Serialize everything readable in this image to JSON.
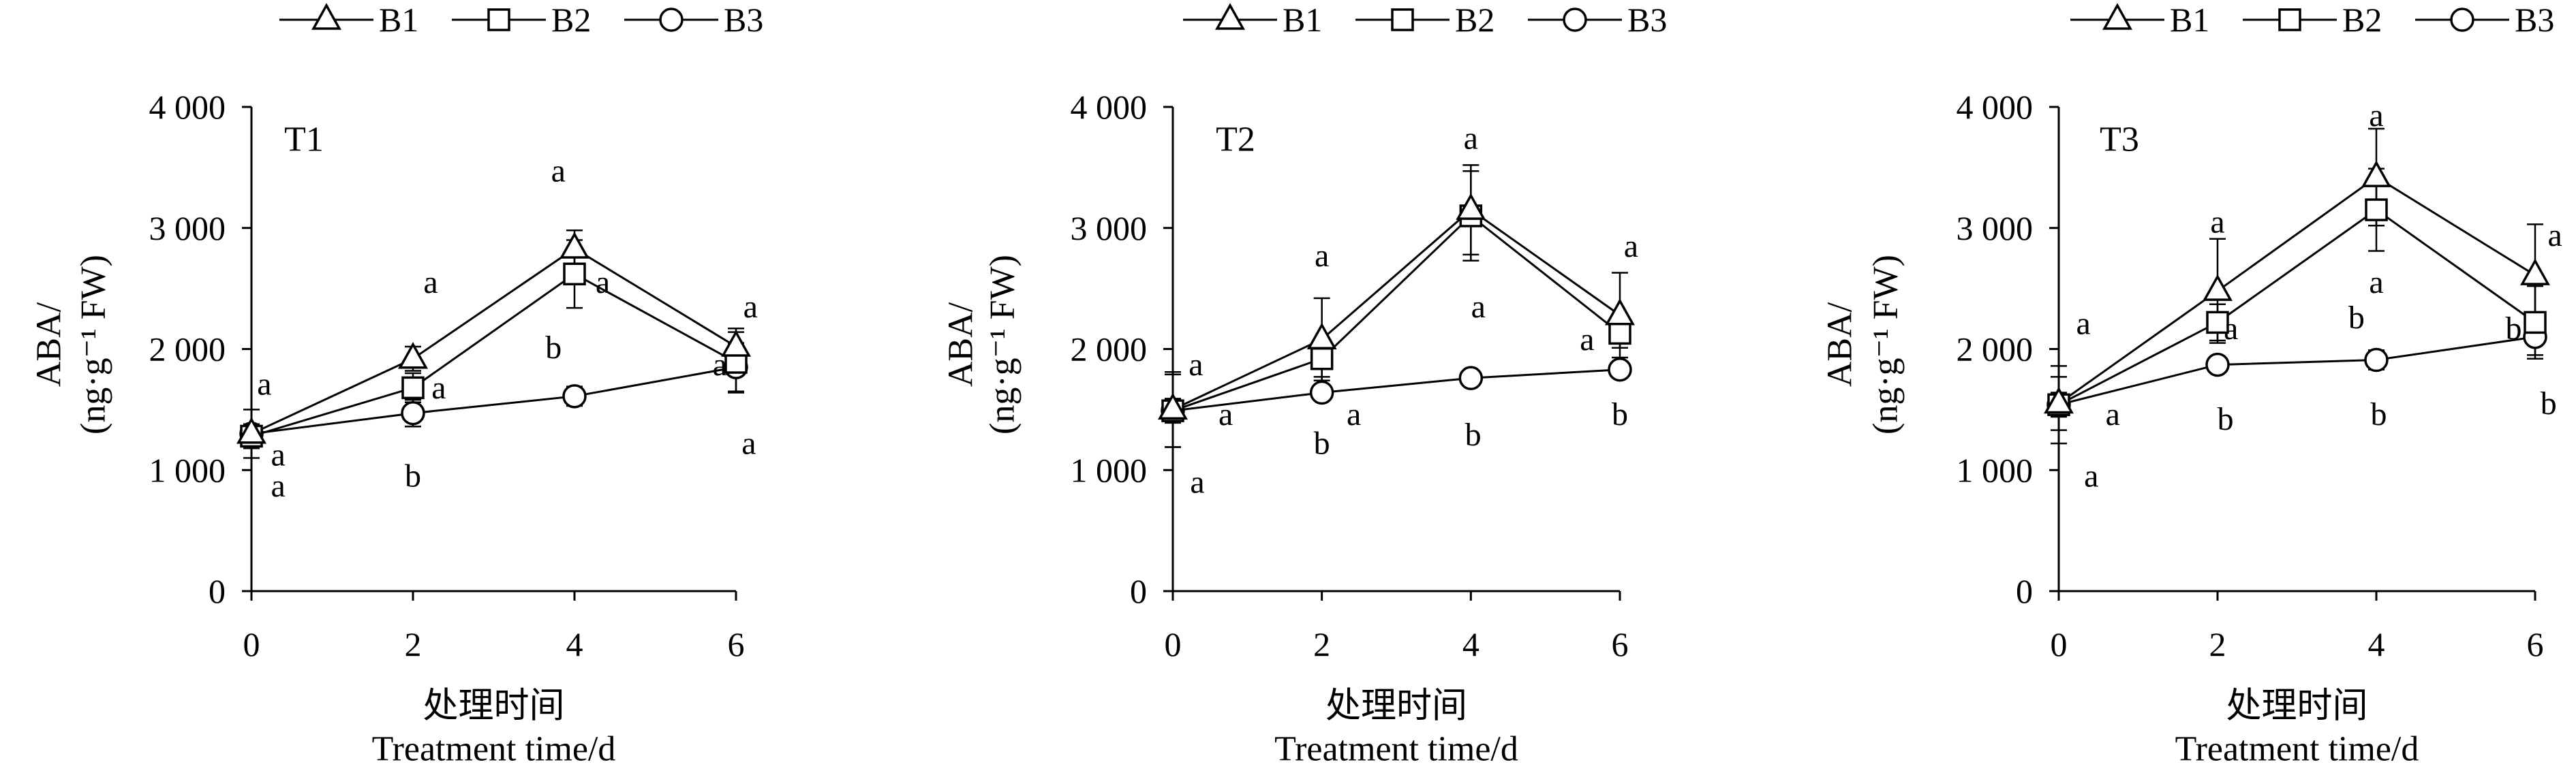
{
  "chart_data": [
    {
      "type": "line",
      "panel_label": "T1",
      "x": [
        0,
        2,
        4,
        6
      ],
      "xticks": [
        "0",
        "2",
        "4",
        "6"
      ],
      "xlim": [
        0,
        6
      ],
      "ytick_values": [
        0,
        1000,
        2000,
        3000,
        4000
      ],
      "yticks": [
        "0",
        "1 000",
        "2 000",
        "3 000",
        "4 000"
      ],
      "ylim": [
        0,
        4000
      ],
      "xlabel": [
        "处理时间",
        "Treatment time/d"
      ],
      "ylabel": [
        "ABA/",
        "(ng·g⁻¹ FW)"
      ],
      "legend": "top",
      "grid": false,
      "series": [
        {
          "name": "B1",
          "marker": "triangle",
          "values": [
            1300,
            1920,
            2830,
            2020
          ],
          "errors": [
            200,
            100,
            150,
            150
          ]
        },
        {
          "name": "B2",
          "marker": "square",
          "values": [
            1280,
            1680,
            2620,
            1890
          ],
          "errors": [
            100,
            120,
            280,
            250
          ]
        },
        {
          "name": "B3",
          "marker": "circle",
          "values": [
            1300,
            1470,
            1610,
            1850
          ],
          "errors": [
            60,
            110,
            80,
            200
          ]
        }
      ],
      "annotations": [
        {
          "x": 3.8,
          "y": 3470,
          "text": "a"
        },
        {
          "x": 2.22,
          "y": 2550,
          "text": "a"
        },
        {
          "x": 0.16,
          "y": 1710,
          "text": "a"
        },
        {
          "x": 2.32,
          "y": 1680,
          "text": "a"
        },
        {
          "x": 0.33,
          "y": 1125,
          "text": "a"
        },
        {
          "x": 0.33,
          "y": 870,
          "text": "a"
        },
        {
          "x": 2.0,
          "y": 950,
          "text": "b"
        },
        {
          "x": 3.74,
          "y": 2010,
          "text": "b"
        },
        {
          "x": 4.35,
          "y": 2550,
          "text": "a"
        },
        {
          "x": 6.18,
          "y": 2350,
          "text": "a"
        },
        {
          "x": 5.8,
          "y": 1870,
          "text": "a"
        },
        {
          "x": 6.16,
          "y": 1220,
          "text": "a"
        }
      ]
    },
    {
      "type": "line",
      "panel_label": "T2",
      "x": [
        0,
        2,
        4,
        6
      ],
      "xticks": [
        "0",
        "2",
        "4",
        "6"
      ],
      "xlim": [
        0,
        6
      ],
      "ytick_values": [
        0,
        1000,
        2000,
        3000,
        4000
      ],
      "yticks": [
        "0",
        "1 000",
        "2 000",
        "3 000",
        "4 000"
      ],
      "ylim": [
        0,
        4000
      ],
      "xlabel": [
        "处理时间",
        "Treatment time/d"
      ],
      "ylabel": [
        "ABA/",
        "(ng·g⁻¹ FW)"
      ],
      "legend": "top",
      "grid": false,
      "series": [
        {
          "name": "B1",
          "marker": "triangle",
          "values": [
            1500,
            2080,
            3150,
            2280
          ],
          "errors": [
            310,
            340,
            370,
            350
          ]
        },
        {
          "name": "B2",
          "marker": "square",
          "values": [
            1490,
            1920,
            3100,
            2130
          ],
          "errors": [
            100,
            150,
            370,
            120
          ]
        },
        {
          "name": "B3",
          "marker": "circle",
          "values": [
            1490,
            1640,
            1760,
            1830
          ],
          "errors": [
            300,
            50,
            40,
            40
          ]
        }
      ],
      "annotations": [
        {
          "x": 4.0,
          "y": 3740,
          "text": "a"
        },
        {
          "x": 2.0,
          "y": 2770,
          "text": "a"
        },
        {
          "x": 0.31,
          "y": 1870,
          "text": "a"
        },
        {
          "x": 6.15,
          "y": 2850,
          "text": "a"
        },
        {
          "x": 0.71,
          "y": 1460,
          "text": "a"
        },
        {
          "x": 2.43,
          "y": 1460,
          "text": "a"
        },
        {
          "x": 4.1,
          "y": 2350,
          "text": "a"
        },
        {
          "x": 5.56,
          "y": 2080,
          "text": "a"
        },
        {
          "x": 2.0,
          "y": 1220,
          "text": "b"
        },
        {
          "x": 4.03,
          "y": 1290,
          "text": "b"
        },
        {
          "x": 6.0,
          "y": 1460,
          "text": "b"
        },
        {
          "x": 0.33,
          "y": 900,
          "text": "a"
        }
      ]
    },
    {
      "type": "line",
      "panel_label": "T3",
      "x": [
        0,
        2,
        4,
        6
      ],
      "xticks": [
        "0",
        "2",
        "4",
        "6"
      ],
      "xlim": [
        0,
        6
      ],
      "ytick_values": [
        0,
        1000,
        2000,
        3000,
        4000
      ],
      "yticks": [
        "0",
        "1 000",
        "2 000",
        "3 000",
        "4 000"
      ],
      "ylim": [
        0,
        4000
      ],
      "xlabel": [
        "处理时间",
        "Treatment time/d"
      ],
      "ylabel": [
        "ABA/",
        "(ng·g⁻¹ FW)"
      ],
      "legend": "top",
      "grid": false,
      "series": [
        {
          "name": "B1",
          "marker": "triangle",
          "values": [
            1550,
            2480,
            3420,
            2610
          ],
          "errors": [
            220,
            430,
            400,
            420
          ]
        },
        {
          "name": "B2",
          "marker": "square",
          "values": [
            1540,
            2220,
            3150,
            2220
          ],
          "errors": [
            100,
            150,
            340,
            300
          ]
        },
        {
          "name": "B3",
          "marker": "circle",
          "values": [
            1540,
            1870,
            1910,
            2100
          ],
          "errors": [
            320,
            60,
            80,
            150
          ]
        }
      ],
      "annotations": [
        {
          "x": 4.0,
          "y": 3930,
          "text": "a"
        },
        {
          "x": 2.0,
          "y": 3050,
          "text": "a"
        },
        {
          "x": 0.31,
          "y": 2210,
          "text": "a"
        },
        {
          "x": 6.25,
          "y": 2940,
          "text": "a"
        },
        {
          "x": 2.17,
          "y": 2170,
          "text": "a"
        },
        {
          "x": 4.0,
          "y": 2550,
          "text": "a"
        },
        {
          "x": 3.75,
          "y": 2260,
          "text": "b"
        },
        {
          "x": 5.73,
          "y": 2170,
          "text": "b"
        },
        {
          "x": 0.68,
          "y": 1460,
          "text": "a"
        },
        {
          "x": 2.1,
          "y": 1420,
          "text": "b"
        },
        {
          "x": 4.03,
          "y": 1460,
          "text": "b"
        },
        {
          "x": 6.17,
          "y": 1550,
          "text": "b"
        },
        {
          "x": 0.41,
          "y": 950,
          "text": "a"
        }
      ]
    }
  ]
}
